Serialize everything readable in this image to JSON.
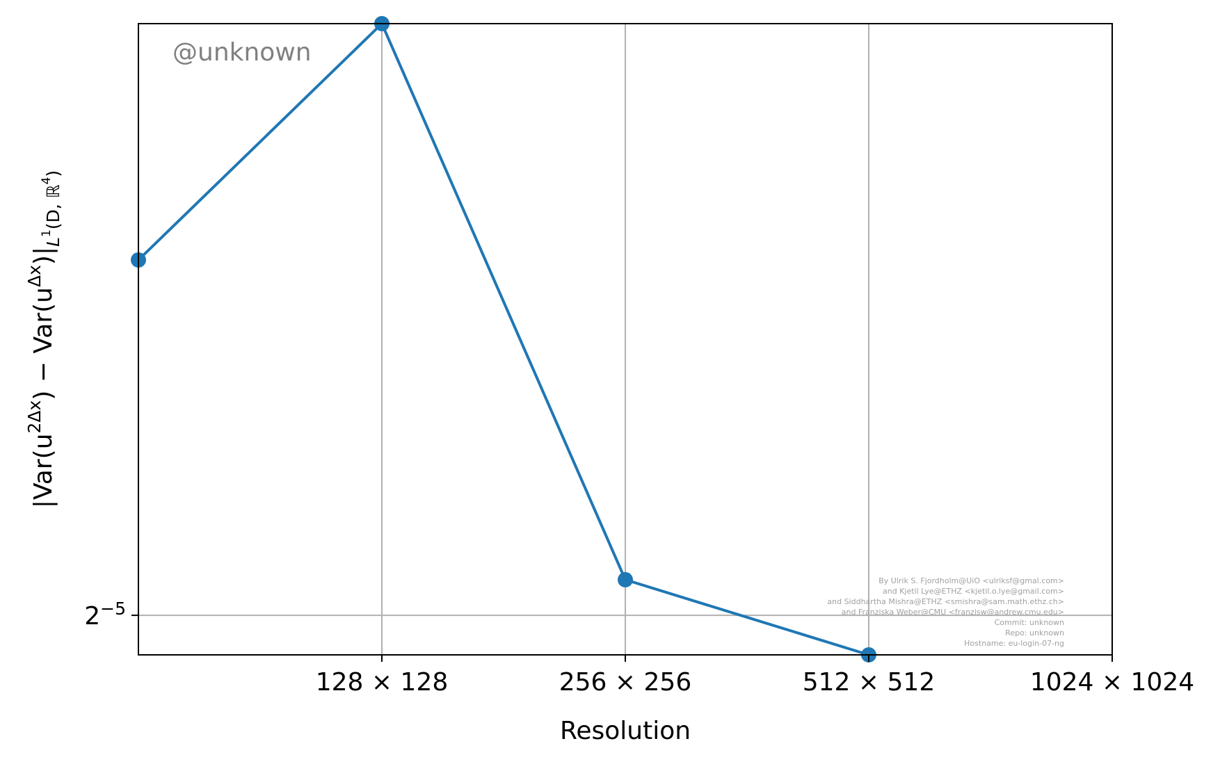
{
  "chart_data": {
    "type": "line",
    "title": "",
    "xlabel": "Resolution",
    "ylabel_parts": [
      "|Var(u",
      "2Δx",
      ") − Var(u",
      "Δx",
      ")|",
      "L",
      "1",
      "(D, ℝ",
      "4",
      ")"
    ],
    "x_scale": "log2",
    "y_scale": "log2",
    "x_ticks": [
      {
        "value": 128,
        "label": "128 × 128"
      },
      {
        "value": 256,
        "label": "256 × 256"
      },
      {
        "value": 512,
        "label": "512 × 512"
      },
      {
        "value": 1024,
        "label": "1024 × 1024"
      }
    ],
    "y_ticks": [
      {
        "value": 0.03125,
        "base": "2",
        "exp": "−5"
      }
    ],
    "xlim": [
      64,
      1024
    ],
    "ylim": [
      0.03124,
      0.0314
    ],
    "grid": true,
    "series": [
      {
        "x": [
          64,
          128,
          256,
          512
        ],
        "y": [
          0.03134,
          0.0314,
          0.031259,
          0.03124
        ],
        "color": "#1f77b4",
        "marker": "circle"
      }
    ],
    "annotations": {
      "watermark": "@unknown",
      "credits": [
        "By Ulrik S. Fjordholm@UiO <ulriksf@gmal.com>",
        "and Kjetil Lye@ETHZ <kjetil.o.lye@gmail.com>",
        "and Siddhartha Mishra@ETHZ <smishra@sam.math.ethz.ch>",
        "and Franziska Weber@CMU <franzisw@andrew.cmu.edu>",
        "Commit: unknown",
        "Repo: unknown",
        "Hostname: eu-login-07-ng"
      ]
    }
  }
}
